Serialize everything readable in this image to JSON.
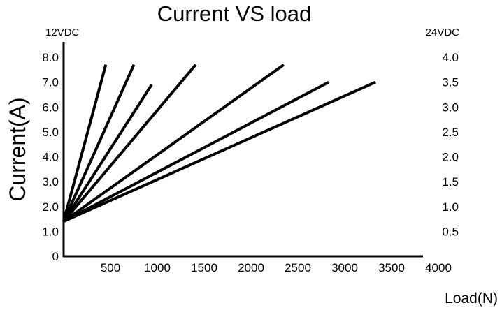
{
  "chart_data": {
    "type": "line",
    "title": "Current VS load",
    "ylabel": "Current(A)",
    "xlabel": "Load(N)",
    "left_axis_unit": "12VDC",
    "right_axis_unit": "24VDC",
    "xlim": [
      0,
      4000
    ],
    "ylim": [
      0,
      8.0
    ],
    "y2lim": [
      0,
      4.0
    ],
    "x_ticks": [
      "500",
      "1000",
      "1500",
      "2000",
      "2500",
      "3000",
      "3500",
      "4000"
    ],
    "y_ticks": [
      "0",
      "1.0",
      "2.0",
      "3.0",
      "4.0",
      "5.0",
      "6.0",
      "7.0",
      "8.0"
    ],
    "y2_ticks": [
      "0.5",
      "1.0",
      "1.5",
      "2.0",
      "2.5",
      "3.0",
      "3.5",
      "4.0"
    ],
    "series": [
      {
        "x": [
          0,
          450
        ],
        "y": [
          1.4,
          7.7
        ]
      },
      {
        "x": [
          0,
          750
        ],
        "y": [
          1.4,
          7.7
        ]
      },
      {
        "x": [
          0,
          940
        ],
        "y": [
          1.4,
          6.9
        ]
      },
      {
        "x": [
          0,
          1410
        ],
        "y": [
          1.4,
          7.7
        ]
      },
      {
        "x": [
          0,
          2350
        ],
        "y": [
          1.4,
          7.7
        ]
      },
      {
        "x": [
          0,
          2830
        ],
        "y": [
          1.4,
          7.0
        ]
      },
      {
        "x": [
          0,
          3330
        ],
        "y": [
          1.4,
          7.0
        ]
      }
    ],
    "grid": false,
    "legend": "none",
    "line_color": "#000000"
  }
}
